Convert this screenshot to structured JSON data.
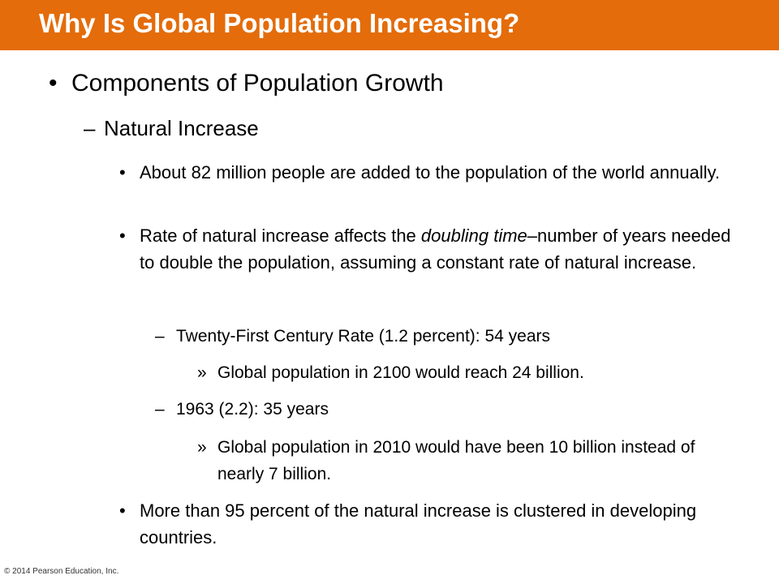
{
  "slide": {
    "title": "Why Is Global Population Increasing?",
    "heading": "Components of Population Growth",
    "subheading": "Natural Increase",
    "point_1": "About 82 million people are added to the population of the world annually.",
    "point_2": {
      "before": "Rate of natural increase affects the ",
      "italic": "doubling time",
      "after": "–number of years needed to double the population, assuming a constant rate of natural increase."
    },
    "rate_1": "Twenty-First Century Rate (1.2 percent): 54 years",
    "result_1": "Global population in 2100 would reach 24 billion.",
    "rate_2": "1963 (2.2): 35 years",
    "result_2": "Global population in 2010 would have been 10 billion instead of nearly 7 billion.",
    "point_3": "More than 95 percent of the natural increase is clustered in developing countries.",
    "footer": "© 2014 Pearson Education, Inc."
  }
}
